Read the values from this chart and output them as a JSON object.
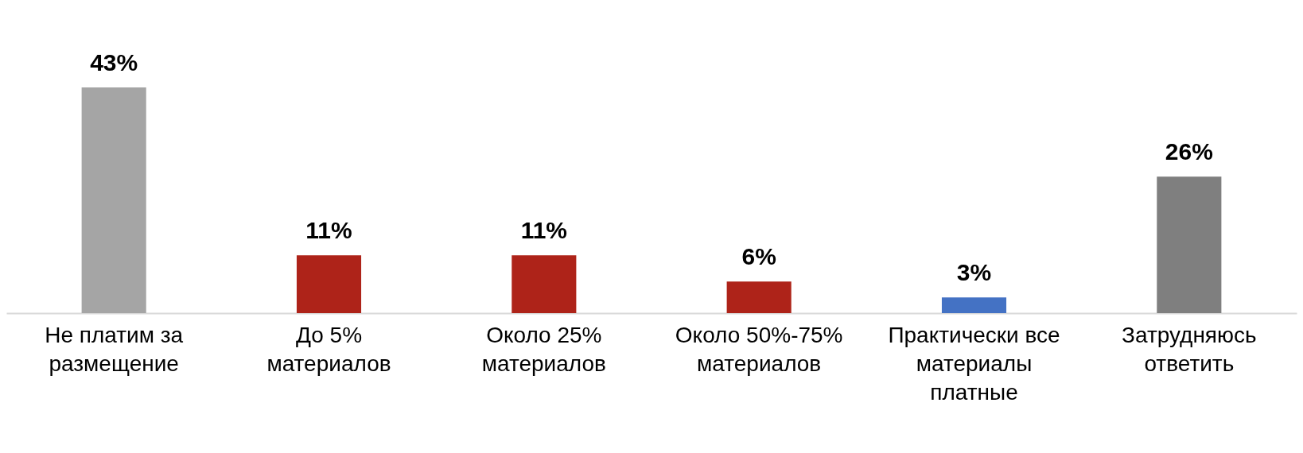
{
  "chart_data": {
    "type": "bar",
    "categories": [
      "Не платим за\nразмещение",
      "До 5%\nматериалов",
      "Около 25%\nматериалов",
      "Около 50%-75%\nматериалов",
      "Практически все\nматериалы\nплатные",
      "Затрудняюсь\nответить"
    ],
    "values": [
      43,
      11,
      11,
      6,
      3,
      26
    ],
    "colors": [
      "#a5a5a5",
      "#ae2319",
      "#ae2319",
      "#ae2319",
      "#4472c4",
      "#7f7f7f"
    ],
    "value_labels": [
      "43%",
      "11%",
      "11%",
      "6%",
      "3%",
      "26%"
    ],
    "grid": false,
    "legend": false
  }
}
